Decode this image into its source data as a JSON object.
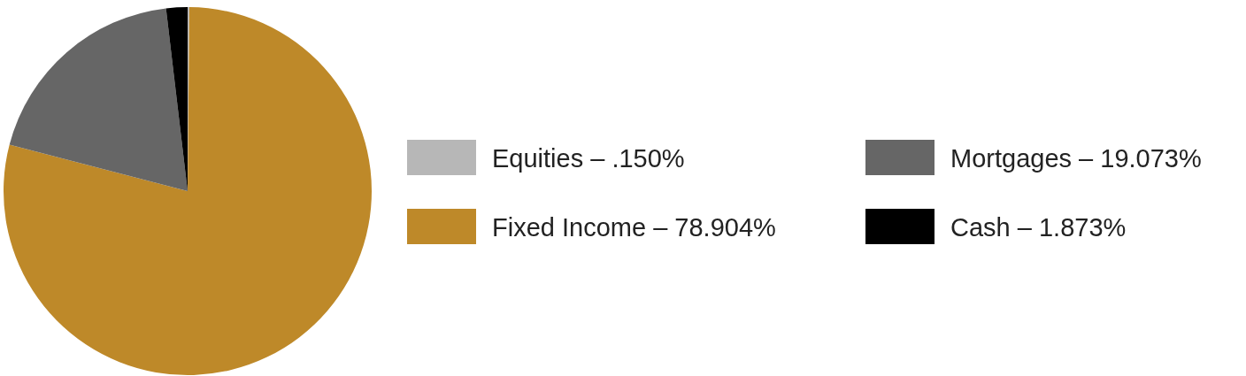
{
  "chart_data": {
    "type": "pie",
    "categories": [
      "Equities – .150%",
      "Fixed Income – 78.904%",
      "Mortgages – 19.073%",
      "Cash – 1.873%"
    ],
    "values": [
      0.15,
      78.904,
      19.073,
      1.873
    ],
    "colors": [
      "#b7b7b7",
      "#be8929",
      "#666666",
      "#000000"
    ],
    "legend": "right"
  }
}
